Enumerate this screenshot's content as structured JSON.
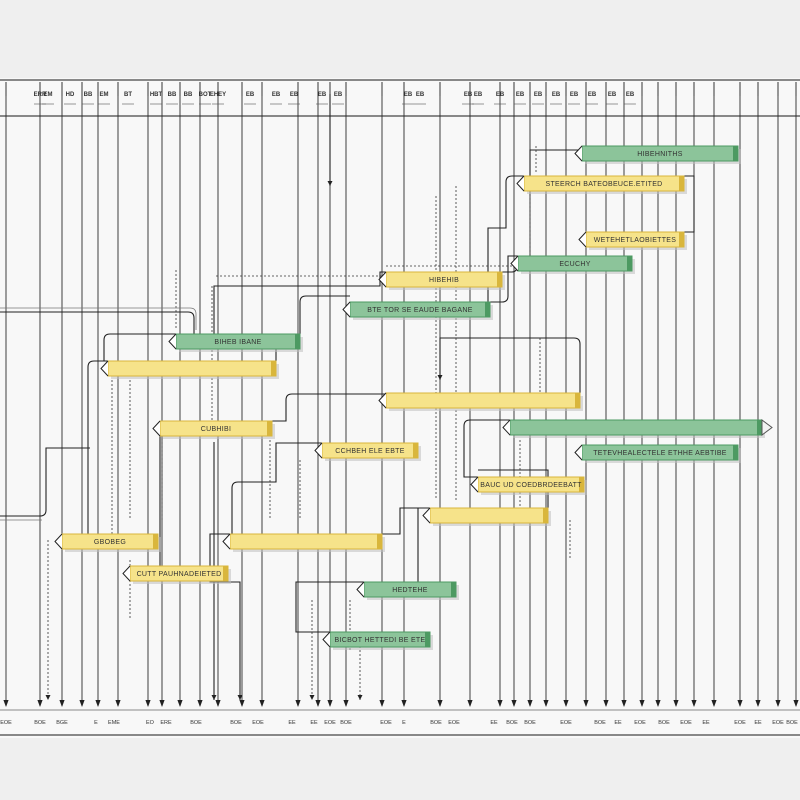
{
  "colors": {
    "background": "#efefef",
    "panel": "#f7f7f7",
    "grid_line": "#2a2a2a",
    "connector": "#222222",
    "green_fill": "#8cc49a",
    "green_dark": "#4d9a62",
    "yellow_fill": "#f6e38a",
    "yellow_dark": "#d9b63c"
  },
  "header_labels": [
    "",
    "ERR",
    "EM",
    "HD",
    "",
    "",
    "",
    "BB",
    "EM",
    "",
    "BT",
    "",
    "",
    "HBT",
    "",
    "BB",
    "BB",
    "",
    "",
    "BOT",
    "",
    "EHEY",
    "",
    "EB",
    "EB",
    "EB",
    "EB",
    "EB",
    "EB",
    "EB",
    "EB",
    "EB",
    "EB",
    "EB",
    "EB",
    "EB",
    "EB",
    "EB",
    "EB",
    "EB"
  ],
  "footer_labels": [
    "EOE",
    "BOE",
    "BGE",
    "E",
    "EME",
    "EO",
    "ERE",
    "BOE",
    "BOE",
    "EOE",
    "EE",
    "EE",
    "EOE",
    "BOE",
    "EOE",
    "E",
    "BOE",
    "EOE",
    "EE",
    "BOE",
    "BOE",
    "EOE",
    "BOE",
    "EE",
    "EOE",
    "BOE",
    "EOE",
    "EE",
    "EOE",
    "EE",
    "EOE",
    "BOE",
    "EE"
  ],
  "tasks": [
    {
      "label": "HIBEHNITHS",
      "color": "green"
    },
    {
      "label": "STEERCH BATEOBEUCE.ETITED",
      "color": "yellow"
    },
    {
      "label": "WETEHETLAOBIETTES",
      "color": "yellow"
    },
    {
      "label": "ECUCHY",
      "color": "green"
    },
    {
      "label": "HIBEHIB",
      "color": "yellow"
    },
    {
      "label": "BTE TOR SE EAUDE BAGANE",
      "color": "green"
    },
    {
      "label": "BIHEB IBANE",
      "color": "green"
    },
    {
      "label": "",
      "color": "yellow"
    },
    {
      "label": "",
      "color": "yellow"
    },
    {
      "label": "CUBHIBI",
      "color": "yellow"
    },
    {
      "label": "",
      "color": "green"
    },
    {
      "label": "CCHBEH ELE EBTE",
      "color": "yellow"
    },
    {
      "label": "TETEVHEALECTELE ETHHE AEBTIBE",
      "color": "green"
    },
    {
      "label": "BAUC UD COEDBRDEEBATT",
      "color": "yellow"
    },
    {
      "label": "",
      "color": "yellow"
    },
    {
      "label": "GBOBEG",
      "color": "yellow"
    },
    {
      "label": "",
      "color": "yellow"
    },
    {
      "label": "CUTT PAUHNADEIETED",
      "color": "yellow"
    },
    {
      "label": "HEDTEHE",
      "color": "green"
    },
    {
      "label": "BICBOT HETTEDI BE ETE",
      "color": "green"
    }
  ]
}
